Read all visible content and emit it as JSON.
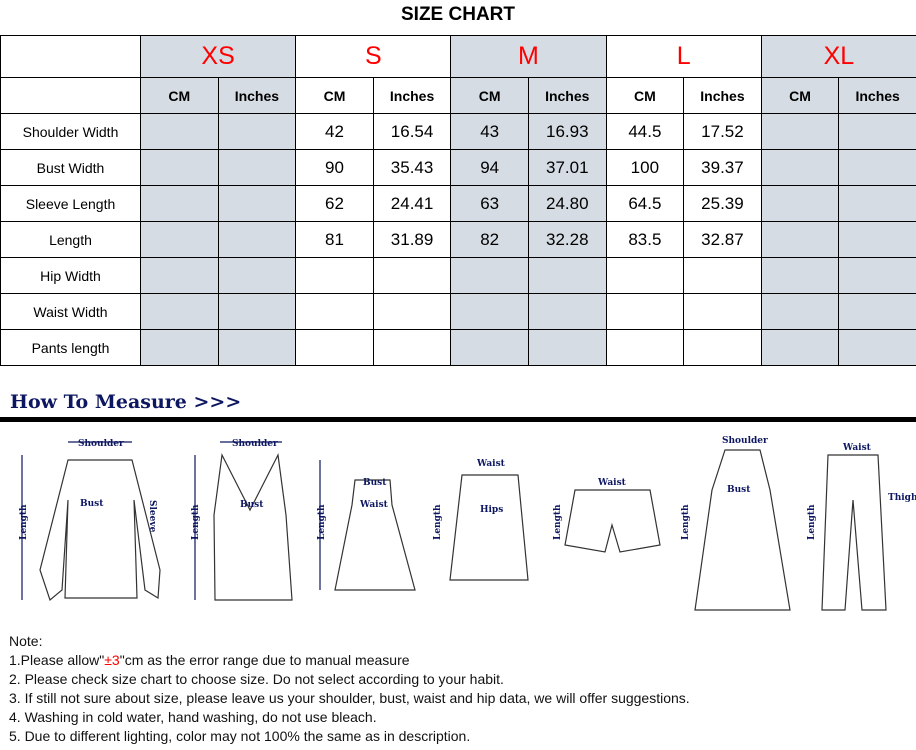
{
  "title": "SIZE CHART",
  "sizes": [
    "XS",
    "S",
    "M",
    "L",
    "XL"
  ],
  "units": [
    "CM",
    "Inches"
  ],
  "rows": [
    {
      "label": "Shoulder Width",
      "values": [
        "",
        "",
        "42",
        "16.54",
        "43",
        "16.93",
        "44.5",
        "17.52",
        "",
        ""
      ]
    },
    {
      "label": "Bust Width",
      "values": [
        "",
        "",
        "90",
        "35.43",
        "94",
        "37.01",
        "100",
        "39.37",
        "",
        ""
      ]
    },
    {
      "label": "Sleeve Length",
      "values": [
        "",
        "",
        "62",
        "24.41",
        "63",
        "24.80",
        "64.5",
        "25.39",
        "",
        ""
      ]
    },
    {
      "label": "Length",
      "values": [
        "",
        "",
        "81",
        "31.89",
        "82",
        "32.28",
        "83.5",
        "32.87",
        "",
        ""
      ]
    },
    {
      "label": "Hip Width",
      "values": [
        "",
        "",
        "",
        "",
        "",
        "",
        "",
        "",
        "",
        ""
      ]
    },
    {
      "label": "Waist Width",
      "values": [
        "",
        "",
        "",
        "",
        "",
        "",
        "",
        "",
        "",
        ""
      ]
    },
    {
      "label": "Pants length",
      "values": [
        "",
        "",
        "",
        "",
        "",
        "",
        "",
        "",
        "",
        ""
      ]
    }
  ],
  "colors": {
    "size_label": "#ff0000",
    "shaded": "#d6dce4",
    "measure_heading": "#0d1660"
  },
  "how_to_measure": "How To Measure >>>",
  "figure_labels": {
    "shoulder": "Shoulder",
    "bust": "Bust",
    "sleeve": "Sleeve",
    "length": "Length",
    "waist": "Waist",
    "hips": "Hips",
    "thigh": "Thigh"
  },
  "notes": {
    "heading": "Note:",
    "n1_pre": "1.Please allow\"",
    "n1_red": "±3",
    "n1_post": "\"cm as the error range due to manual measure",
    "n2": "2. Please check size chart to choose size. Do not select according to your habit.",
    "n3": "3. If still not sure about size, please leave us your shoulder, bust, waist and hip data, we will offer suggestions.",
    "n4": "4. Washing in cold water, hand washing, do not use bleach.",
    "n5": "5. Due to different lighting, color may not 100% the same as in description."
  }
}
